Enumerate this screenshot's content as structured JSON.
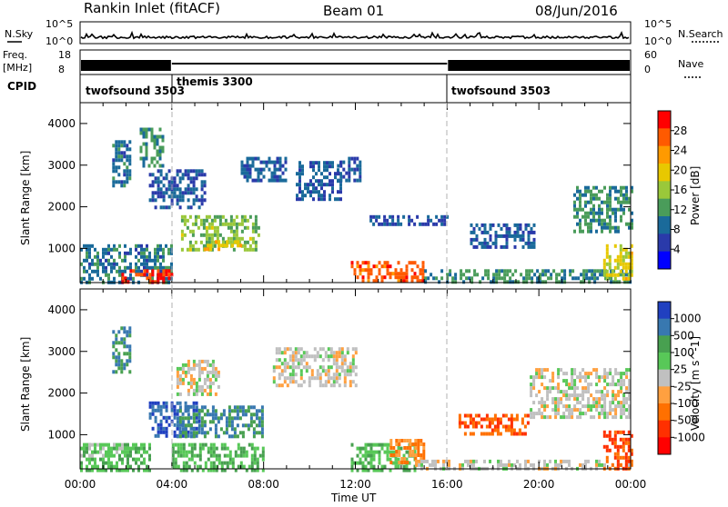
{
  "header": {
    "station": "Rankin Inlet (fitACF)",
    "beam": "Beam 01",
    "date": "08/Jun/2016"
  },
  "noise_panel": {
    "left_label": "N.Sky",
    "right_label": "N.Search",
    "left_ticks": [
      "10^5",
      "10^0"
    ],
    "right_ticks": [
      "10^5",
      "10^0"
    ]
  },
  "freq_panel": {
    "left_label_line1": "Freq.",
    "left_label_line2": "[MHz]",
    "left_ticks": [
      "18",
      "8"
    ],
    "right_label": "Nave",
    "right_ticks": [
      "60",
      "0"
    ]
  },
  "cpid": {
    "label": "CPID",
    "segments": [
      {
        "name": "twofsound 3503",
        "start_hour": 0,
        "end_hour": 4
      },
      {
        "name": "themis 3300",
        "start_hour": 4,
        "end_hour": 16
      },
      {
        "name": "twofsound 3503",
        "start_hour": 16,
        "end_hour": 24
      }
    ]
  },
  "colorbars": {
    "power": {
      "label": "Power [dB]",
      "ticks": [
        "28",
        "24",
        "20",
        "16",
        "12",
        "8",
        "4"
      ],
      "colors": [
        "#ff0000",
        "#ff5a00",
        "#ff9a00",
        "#e8c800",
        "#9ac83a",
        "#4a9c5a",
        "#1a6a9a",
        "#2a3aaa",
        "#0000ff"
      ]
    },
    "velocity": {
      "label": "Velocity [m s^-1]",
      "ticks": [
        "1000",
        "500",
        "100",
        "25",
        "-25",
        "-100",
        "-500",
        "-1000"
      ],
      "colors": [
        "#2040c0",
        "#3878b0",
        "#48a050",
        "#58c858",
        "#c0c0c0",
        "#ffa040",
        "#ff7000",
        "#ff3000",
        "#ff0000"
      ]
    }
  },
  "chart_data": {
    "type": "heatmap",
    "x_axis": {
      "label": "Time UT",
      "range_hours": [
        0,
        24
      ],
      "tick_labels": [
        "00:00",
        "04:00",
        "08:00",
        "12:00",
        "16:00",
        "20:00",
        "00:00"
      ]
    },
    "y_axis": {
      "label": "Slant Range [km]",
      "range_km": [
        180,
        4500
      ],
      "tick_labels": [
        "1000",
        "2000",
        "3000",
        "4000"
      ]
    },
    "panels": [
      {
        "name": "Power",
        "units": "dB",
        "scale": [
          0,
          30
        ],
        "echo_regions": [
          {
            "t0": 0.0,
            "t1": 4.0,
            "r0": 200,
            "r1": 1100,
            "value": 8
          },
          {
            "t0": 1.8,
            "t1": 4.0,
            "r0": 200,
            "r1": 500,
            "value": 28
          },
          {
            "t0": 1.4,
            "t1": 2.2,
            "r0": 2500,
            "r1": 3600,
            "value": 8
          },
          {
            "t0": 2.6,
            "t1": 3.6,
            "r0": 3000,
            "r1": 3900,
            "value": 10
          },
          {
            "t0": 3.0,
            "t1": 5.4,
            "r0": 2000,
            "r1": 2900,
            "value": 6
          },
          {
            "t0": 4.4,
            "t1": 7.8,
            "r0": 1000,
            "r1": 1800,
            "value": 14
          },
          {
            "t0": 5.4,
            "t1": 7.0,
            "r0": 1000,
            "r1": 1200,
            "value": 20
          },
          {
            "t0": 7.0,
            "t1": 9.0,
            "r0": 2600,
            "r1": 3200,
            "value": 6
          },
          {
            "t0": 9.4,
            "t1": 11.4,
            "r0": 2200,
            "r1": 3100,
            "value": 6
          },
          {
            "t0": 11.2,
            "t1": 12.2,
            "r0": 2600,
            "r1": 3200,
            "value": 5
          },
          {
            "t0": 11.8,
            "t1": 15.0,
            "r0": 180,
            "r1": 700,
            "value": 26
          },
          {
            "t0": 15.0,
            "t1": 24.0,
            "r0": 180,
            "r1": 500,
            "value": 10
          },
          {
            "t0": 12.5,
            "t1": 16.0,
            "r0": 1600,
            "r1": 1800,
            "value": 6
          },
          {
            "t0": 17.0,
            "t1": 19.8,
            "r0": 1000,
            "r1": 1600,
            "value": 6
          },
          {
            "t0": 21.5,
            "t1": 24.0,
            "r0": 1400,
            "r1": 2500,
            "value": 10
          },
          {
            "t0": 22.8,
            "t1": 24.0,
            "r0": 300,
            "r1": 1100,
            "value": 18
          }
        ]
      },
      {
        "name": "Velocity",
        "units": "m s^-1",
        "scale": [
          -1000,
          1000
        ],
        "echo_regions": [
          {
            "t0": 0.0,
            "t1": 3.0,
            "r0": 180,
            "r1": 800,
            "value": 100
          },
          {
            "t0": 0.0,
            "t1": 2.0,
            "r0": 500,
            "r1": 800,
            "value": 25
          },
          {
            "t0": 1.4,
            "t1": 2.2,
            "r0": 2500,
            "r1": 3600,
            "value": 500
          },
          {
            "t0": 3.0,
            "t1": 5.2,
            "r0": 1000,
            "r1": 1800,
            "value": 1000
          },
          {
            "t0": 4.2,
            "t1": 8.0,
            "r0": 1000,
            "r1": 1700,
            "value": 500
          },
          {
            "t0": 4.0,
            "t1": 8.0,
            "r0": 180,
            "r1": 800,
            "value": 100
          },
          {
            "t0": 4.2,
            "t1": 6.0,
            "r0": 2000,
            "r1": 2800,
            "value": 0
          },
          {
            "t0": 8.4,
            "t1": 12.0,
            "r0": 2200,
            "r1": 3100,
            "value": 0
          },
          {
            "t0": 11.8,
            "t1": 14.6,
            "r0": 180,
            "r1": 800,
            "value": 100
          },
          {
            "t0": 13.5,
            "t1": 15.0,
            "r0": 300,
            "r1": 900,
            "value": -100
          },
          {
            "t0": 14.6,
            "t1": 24.0,
            "r0": 180,
            "r1": 400,
            "value": 0
          },
          {
            "t0": 16.5,
            "t1": 19.5,
            "r0": 1000,
            "r1": 1500,
            "value": -500
          },
          {
            "t0": 19.6,
            "t1": 24.0,
            "r0": 1400,
            "r1": 2600,
            "value": 0
          },
          {
            "t0": 22.8,
            "t1": 24.0,
            "r0": 200,
            "r1": 1100,
            "value": -500
          }
        ]
      }
    ]
  }
}
